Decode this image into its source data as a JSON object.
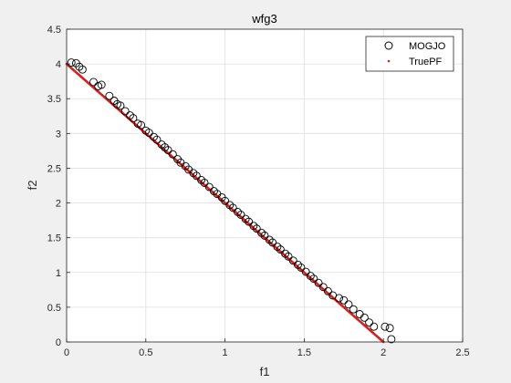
{
  "chart_data": {
    "type": "scatter",
    "title": "wfg3",
    "xlabel": "f1",
    "ylabel": "f2",
    "xlim": [
      0,
      2.5
    ],
    "ylim": [
      0,
      4.5
    ],
    "xticks": [
      "0",
      "0.5",
      "1",
      "1.5",
      "2",
      "2.5"
    ],
    "yticks": [
      "0",
      "0.5",
      "1",
      "1.5",
      "2",
      "2.5",
      "3",
      "3.5",
      "4",
      "4.5"
    ],
    "grid": true,
    "legend_position": "top-right",
    "series": [
      {
        "name": "MOGJO",
        "marker": "open-circle",
        "color": "#000000",
        "points": [
          [
            0.03,
            4.02
          ],
          [
            0.06,
            4.01
          ],
          [
            0.08,
            3.96
          ],
          [
            0.1,
            3.92
          ],
          [
            0.17,
            3.74
          ],
          [
            0.2,
            3.68
          ],
          [
            0.22,
            3.7
          ],
          [
            0.27,
            3.54
          ],
          [
            0.3,
            3.47
          ],
          [
            0.32,
            3.42
          ],
          [
            0.34,
            3.4
          ],
          [
            0.37,
            3.32
          ],
          [
            0.4,
            3.26
          ],
          [
            0.42,
            3.22
          ],
          [
            0.45,
            3.14
          ],
          [
            0.47,
            3.12
          ],
          [
            0.5,
            3.04
          ],
          [
            0.52,
            3.01
          ],
          [
            0.55,
            2.95
          ],
          [
            0.57,
            2.91
          ],
          [
            0.6,
            2.84
          ],
          [
            0.62,
            2.8
          ],
          [
            0.64,
            2.76
          ],
          [
            0.67,
            2.7
          ],
          [
            0.7,
            2.63
          ],
          [
            0.72,
            2.58
          ],
          [
            0.75,
            2.53
          ],
          [
            0.77,
            2.48
          ],
          [
            0.8,
            2.43
          ],
          [
            0.82,
            2.39
          ],
          [
            0.85,
            2.33
          ],
          [
            0.87,
            2.29
          ],
          [
            0.9,
            2.23
          ],
          [
            0.93,
            2.17
          ],
          [
            0.95,
            2.13
          ],
          [
            0.98,
            2.08
          ],
          [
            1.0,
            2.03
          ],
          [
            1.03,
            1.97
          ],
          [
            1.05,
            1.93
          ],
          [
            1.08,
            1.87
          ],
          [
            1.1,
            1.83
          ],
          [
            1.13,
            1.77
          ],
          [
            1.15,
            1.73
          ],
          [
            1.18,
            1.67
          ],
          [
            1.2,
            1.63
          ],
          [
            1.23,
            1.57
          ],
          [
            1.25,
            1.53
          ],
          [
            1.28,
            1.47
          ],
          [
            1.3,
            1.43
          ],
          [
            1.33,
            1.37
          ],
          [
            1.35,
            1.33
          ],
          [
            1.38,
            1.27
          ],
          [
            1.4,
            1.23
          ],
          [
            1.43,
            1.17
          ],
          [
            1.46,
            1.11
          ],
          [
            1.48,
            1.07
          ],
          [
            1.51,
            1.01
          ],
          [
            1.54,
            0.95
          ],
          [
            1.56,
            0.91
          ],
          [
            1.59,
            0.85
          ],
          [
            1.62,
            0.79
          ],
          [
            1.65,
            0.73
          ],
          [
            1.68,
            0.67
          ],
          [
            1.72,
            0.63
          ],
          [
            1.75,
            0.6
          ],
          [
            1.78,
            0.54
          ],
          [
            1.81,
            0.47
          ],
          [
            1.85,
            0.4
          ],
          [
            1.88,
            0.35
          ],
          [
            1.91,
            0.28
          ],
          [
            1.94,
            0.22
          ],
          [
            2.01,
            0.22
          ],
          [
            2.04,
            0.2
          ],
          [
            2.05,
            0.04
          ]
        ]
      },
      {
        "name": "TruePF",
        "marker": "dot",
        "color": "#d62020",
        "line_from": [
          0,
          4
        ],
        "line_to": [
          2,
          0
        ]
      }
    ]
  }
}
